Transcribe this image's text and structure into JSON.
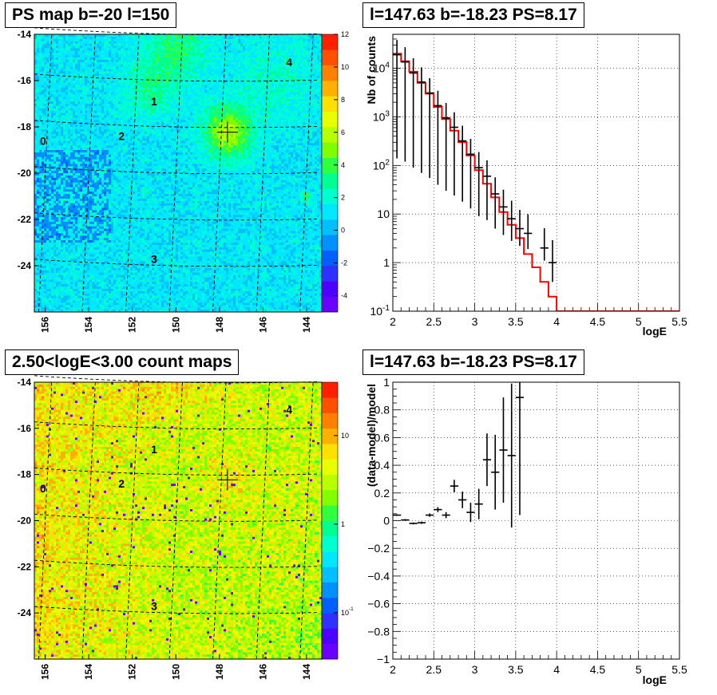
{
  "panels": {
    "top_left_title": "PS map b=-20 l=150",
    "top_right_title": "l=147.63 b=-18.23 PS=8.17",
    "bottom_left_title": "2.50<logE<3.00 count maps",
    "bottom_right_title": "l=147.63 b=-18.23 PS=8.17"
  },
  "colors": {
    "model_line": "#ff0000",
    "data_points": "#000000",
    "frame": "#000000",
    "grid": "#000000"
  },
  "chart_data": [
    {
      "type": "heatmap",
      "title": "PS map b=-20 l=150",
      "x_tick_labels": [
        "156",
        "154",
        "152",
        "150",
        "148",
        "146",
        "144"
      ],
      "x_ticks": [
        156,
        154,
        152,
        150,
        148,
        146,
        144
      ],
      "y_tick_labels": [
        "-14",
        "-16",
        "-18",
        "-20",
        "-22",
        "-24"
      ],
      "y_ticks": [
        -14,
        -16,
        -18,
        -20,
        -22,
        -24
      ],
      "xlim": [
        156.5,
        143.3
      ],
      "ylim": [
        -26,
        -14
      ],
      "colorbar": {
        "scale": "linear",
        "min": -5,
        "max": 12,
        "tick_labels": [
          "12",
          "10",
          "8",
          "6",
          "4",
          "2",
          "0",
          "-2",
          "-4"
        ],
        "ticks": [
          12,
          10,
          8,
          6,
          4,
          2,
          0,
          -2,
          -4
        ],
        "palette": [
          "#6a00ff",
          "#4d00ff",
          "#3030ff",
          "#0060ff",
          "#0090ff",
          "#00c0ff",
          "#00e8ff",
          "#00ffd0",
          "#00ff90",
          "#30ff40",
          "#80ff00",
          "#b8ff00",
          "#e8ff00",
          "#ffe000",
          "#ffb000",
          "#ff8000",
          "#ff5000",
          "#ff2000"
        ]
      },
      "source_labels": [
        {
          "text": "0",
          "l": 156.1,
          "b": -18.6
        },
        {
          "text": "1",
          "l": 151.0,
          "b": -16.9
        },
        {
          "text": "2",
          "l": 152.5,
          "b": -18.4
        },
        {
          "text": "3",
          "l": 151.0,
          "b": -23.7
        },
        {
          "text": "4",
          "l": 144.8,
          "b": -15.2
        }
      ],
      "marker": {
        "l": 147.63,
        "b": -18.23
      }
    },
    {
      "type": "line",
      "title": "l=147.63 b=-18.23 PS=8.17",
      "xlabel": "logE",
      "ylabel": "Nb of counts",
      "xlim": [
        2,
        5.5
      ],
      "ylim": [
        0.1,
        50000
      ],
      "yscale": "log",
      "grid": true,
      "x_tick_labels": [
        "2",
        "2.5",
        "3",
        "3.5",
        "4",
        "4.5",
        "5",
        "5.5"
      ],
      "x_ticks": [
        2,
        2.5,
        3,
        3.5,
        4,
        4.5,
        5,
        5.5
      ],
      "y_tick_labels": [
        "10<sup>-1</sup>",
        "1",
        "10",
        "10<sup>2</sup>",
        "10<sup>3</sup>",
        "10<sup>4</sup>"
      ],
      "y_ticks": [
        0.1,
        1,
        10,
        100,
        1000,
        10000
      ],
      "series": [
        {
          "style": "step",
          "bin_edges": [
            2,
            2.1,
            2.2,
            2.3,
            2.4,
            2.5,
            2.6,
            2.7,
            2.8,
            2.9,
            3.0,
            3.1,
            3.2,
            3.3,
            3.4,
            3.5,
            3.6,
            3.7,
            3.8,
            3.9,
            4.0,
            4.1,
            4.2,
            4.3,
            4.4,
            4.5,
            4.6,
            4.7,
            4.8,
            4.9,
            5.0,
            5.1,
            5.2,
            5.3,
            5.4,
            5.5
          ],
          "values": [
            20000,
            14000,
            8500,
            5000,
            3000,
            1600,
            900,
            520,
            300,
            160,
            80,
            42,
            22,
            11,
            6,
            3.2,
            1.5,
            0.8,
            0.4,
            0.2,
            0.1,
            0.1,
            0.1,
            0.1,
            0.1,
            0.1,
            0.1,
            0.1,
            0.1,
            0.1,
            0.1,
            0.1,
            0.1,
            0.1,
            0.1
          ]
        },
        {
          "style": "errorbar",
          "x": [
            2.05,
            2.15,
            2.25,
            2.35,
            2.45,
            2.55,
            2.65,
            2.75,
            2.85,
            2.95,
            3.05,
            3.15,
            3.25,
            3.35,
            3.45,
            3.55,
            3.65,
            3.85,
            3.95
          ],
          "y": [
            19000,
            13500,
            8000,
            5200,
            3100,
            1700,
            950,
            610,
            320,
            170,
            90,
            60,
            26,
            14,
            8,
            5,
            4,
            2,
            1
          ],
          "yerr_low": [
            18860,
            13380,
            7910,
            5130,
            3045,
            1660,
            920,
            586,
            302,
            157,
            81,
            52.5,
            21,
            10.3,
            5.2,
            2.8,
            2.1,
            0.9,
            0.6
          ],
          "yerr_high": [
            19140,
            13620,
            8090,
            5270,
            3155,
            1740,
            980,
            634,
            338,
            183,
            99,
            67.5,
            31,
            17.7,
            10.8,
            7.2,
            5.9,
            3.1,
            1.9
          ]
        }
      ]
    },
    {
      "type": "heatmap",
      "title": "2.50<logE<3.00 count maps",
      "x_tick_labels": [
        "156",
        "154",
        "152",
        "150",
        "148",
        "146",
        "144"
      ],
      "x_ticks": [
        156,
        154,
        152,
        150,
        148,
        146,
        144
      ],
      "y_tick_labels": [
        "-14",
        "-16",
        "-18",
        "-20",
        "-22",
        "-24"
      ],
      "y_ticks": [
        -14,
        -16,
        -18,
        -20,
        -22,
        -24
      ],
      "xlim": [
        156.5,
        143.3
      ],
      "ylim": [
        -26,
        -14
      ],
      "colorbar": {
        "scale": "log",
        "min": 0.03,
        "max": 40,
        "tick_labels": [
          "10",
          "1",
          "10<sup>-1</sup>"
        ],
        "ticks": [
          10,
          1,
          0.1
        ],
        "palette": [
          "#6a00ff",
          "#4d00ff",
          "#3030ff",
          "#0060ff",
          "#0090ff",
          "#00c0ff",
          "#00e8ff",
          "#00ffd0",
          "#00ff90",
          "#30ff40",
          "#80ff00",
          "#b8ff00",
          "#e8ff00",
          "#ffe000",
          "#ffb000",
          "#ff8000",
          "#ff5000",
          "#ff2000"
        ]
      },
      "source_labels": [
        {
          "text": "0",
          "l": 156.1,
          "b": -18.6
        },
        {
          "text": "1",
          "l": 151.0,
          "b": -16.9
        },
        {
          "text": "2",
          "l": 152.5,
          "b": -18.4
        },
        {
          "text": "3",
          "l": 151.0,
          "b": -23.7
        },
        {
          "text": "4",
          "l": 144.8,
          "b": -15.2
        }
      ],
      "marker": {
        "l": 147.63,
        "b": -18.23
      }
    },
    {
      "type": "scatter",
      "title": "l=147.63 b=-18.23 PS=8.17",
      "xlabel": "logE",
      "ylabel": "(data-model)/model",
      "xlim": [
        2,
        5.5
      ],
      "ylim": [
        -1,
        1
      ],
      "grid": true,
      "x_tick_labels": [
        "2",
        "2.5",
        "3",
        "3.5",
        "4",
        "4.5",
        "5",
        "5.5"
      ],
      "x_ticks": [
        2,
        2.5,
        3,
        3.5,
        4,
        4.5,
        5,
        5.5
      ],
      "y_tick_labels": [
        "1",
        "0.8",
        "0.6",
        "0.4",
        "0.2",
        "0",
        "−0.2",
        "−0.4",
        "−0.6",
        "−0.8",
        "−1"
      ],
      "y_ticks": [
        1,
        0.8,
        0.6,
        0.4,
        0.2,
        0,
        -0.2,
        -0.4,
        -0.6,
        -0.8,
        -1
      ],
      "series": [
        {
          "style": "errorbar",
          "x": [
            2.05,
            2.15,
            2.25,
            2.35,
            2.45,
            2.55,
            2.65,
            2.75,
            2.85,
            2.95,
            3.05,
            3.15,
            3.25,
            3.35,
            3.45,
            3.55
          ],
          "y": [
            0.04,
            0.005,
            -0.02,
            -0.015,
            0.04,
            0.08,
            0.04,
            0.25,
            0.15,
            0.06,
            0.12,
            0.44,
            0.35,
            0.51,
            0.47,
            0.89
          ],
          "yerr": [
            0.005,
            0.006,
            0.007,
            0.008,
            0.012,
            0.018,
            0.022,
            0.045,
            0.06,
            0.07,
            0.11,
            0.19,
            0.27,
            0.38,
            0.52,
            0.85
          ]
        }
      ]
    }
  ]
}
